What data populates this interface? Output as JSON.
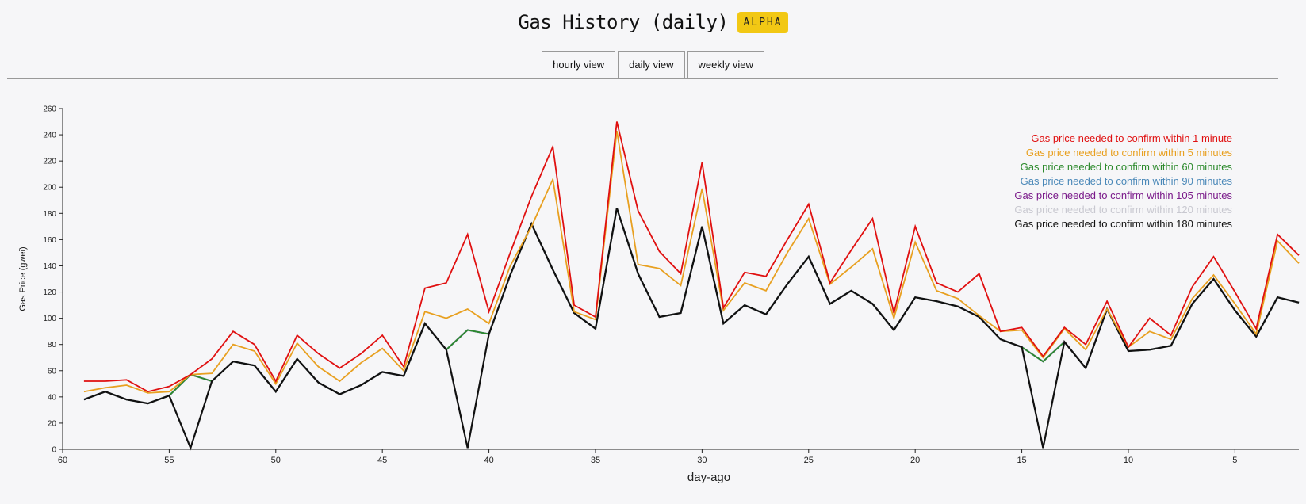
{
  "header": {
    "title": "Gas History (daily)",
    "badge": "ALPHA"
  },
  "tabs": [
    {
      "label": "hourly view"
    },
    {
      "label": "daily view"
    },
    {
      "label": "weekly view"
    }
  ],
  "chart_data": {
    "type": "line",
    "xlabel": "day-ago",
    "ylabel": "Gas Price (gwei)",
    "xlim": [
      60,
      2
    ],
    "ylim": [
      0,
      260
    ],
    "x_reversed": true,
    "xticks": [
      60,
      55,
      50,
      45,
      40,
      35,
      30,
      25,
      20,
      15,
      10,
      5
    ],
    "yticks": [
      0,
      20,
      40,
      60,
      80,
      100,
      120,
      140,
      160,
      180,
      200,
      220,
      240,
      260
    ],
    "legend_position": "top-right",
    "x": [
      59,
      58,
      57,
      56,
      55,
      54,
      53,
      52,
      51,
      50,
      49,
      48,
      47,
      46,
      45,
      44,
      43,
      42,
      41,
      40,
      39,
      38,
      37,
      36,
      35,
      34,
      33,
      32,
      31,
      30,
      29,
      28,
      27,
      26,
      25,
      24,
      23,
      22,
      21,
      20,
      19,
      18,
      17,
      16,
      15,
      14,
      13,
      12,
      11,
      10,
      9,
      8,
      7,
      6,
      5,
      4,
      3,
      2
    ],
    "series": [
      {
        "name": "Gas price needed to confirm within 1 minute",
        "color": "#e01010",
        "values": [
          52,
          52,
          53,
          44,
          48,
          57,
          69,
          90,
          80,
          52,
          87,
          73,
          62,
          73,
          87,
          63,
          123,
          127,
          164,
          105,
          150,
          193,
          231,
          110,
          101,
          250,
          182,
          151,
          134,
          219,
          108,
          135,
          132,
          160,
          187,
          127,
          152,
          176,
          104,
          170,
          127,
          120,
          134,
          90,
          93,
          71,
          93,
          80,
          113,
          78,
          100,
          87,
          124,
          147,
          120,
          92,
          164,
          148
        ]
      },
      {
        "name": "Gas price needed to confirm within 5 minutes",
        "color": "#e8a020",
        "values": [
          44,
          47,
          49,
          43,
          44,
          57,
          58,
          80,
          75,
          50,
          81,
          63,
          52,
          66,
          77,
          60,
          105,
          100,
          107,
          96,
          140,
          170,
          206,
          105,
          99,
          243,
          141,
          138,
          125,
          199,
          106,
          127,
          121,
          150,
          176,
          126,
          139,
          153,
          100,
          158,
          121,
          115,
          102,
          90,
          91,
          70,
          92,
          76,
          107,
          78,
          90,
          84,
          115,
          133,
          111,
          88,
          159,
          142
        ]
      },
      {
        "name": "Gas price needed to confirm within 60 minutes",
        "color": "#2c8a2c",
        "values": [
          38,
          44,
          38,
          35,
          41,
          57,
          52,
          67,
          64,
          44,
          69,
          51,
          42,
          49,
          59,
          56,
          96,
          76,
          91,
          88,
          133,
          172,
          137,
          104,
          92,
          184,
          134,
          101,
          104,
          170,
          96,
          110,
          103,
          126,
          147,
          111,
          121,
          111,
          91,
          116,
          113,
          109,
          101,
          84,
          78,
          67,
          82,
          62,
          107,
          75,
          76,
          79,
          111,
          130,
          106,
          86,
          116,
          112
        ]
      },
      {
        "name": "Gas price needed to confirm within 90 minutes",
        "color": "#4a88b8",
        "values": [
          38,
          44,
          38,
          35,
          41,
          57,
          52,
          67,
          64,
          44,
          69,
          51,
          42,
          49,
          59,
          56,
          96,
          76,
          91,
          88,
          133,
          172,
          137,
          104,
          92,
          184,
          134,
          101,
          104,
          170,
          96,
          110,
          103,
          126,
          147,
          111,
          121,
          111,
          91,
          116,
          113,
          109,
          101,
          84,
          78,
          67,
          82,
          62,
          107,
          75,
          76,
          79,
          111,
          130,
          106,
          86,
          116,
          112
        ]
      },
      {
        "name": "Gas price needed to confirm within 105 minutes",
        "color": "#7a1a8a",
        "values": [
          38,
          44,
          38,
          35,
          41,
          57,
          52,
          67,
          64,
          44,
          69,
          51,
          42,
          49,
          59,
          56,
          96,
          76,
          91,
          88,
          133,
          172,
          137,
          104,
          92,
          184,
          134,
          101,
          104,
          170,
          96,
          110,
          103,
          126,
          147,
          111,
          121,
          111,
          91,
          116,
          113,
          109,
          101,
          84,
          78,
          67,
          82,
          62,
          107,
          75,
          76,
          79,
          111,
          130,
          106,
          86,
          116,
          112
        ]
      },
      {
        "name": "Gas price needed to confirm within 120 minutes",
        "color": "#c8c8d0",
        "values": [
          38,
          44,
          38,
          35,
          41,
          57,
          52,
          67,
          64,
          44,
          69,
          51,
          42,
          49,
          59,
          56,
          96,
          76,
          91,
          88,
          133,
          172,
          137,
          104,
          92,
          184,
          134,
          101,
          104,
          170,
          96,
          110,
          103,
          126,
          147,
          111,
          121,
          111,
          91,
          116,
          113,
          109,
          101,
          84,
          78,
          67,
          82,
          62,
          107,
          75,
          76,
          79,
          111,
          130,
          106,
          86,
          116,
          112
        ]
      },
      {
        "name": "Gas price needed to confirm within 180 minutes",
        "color": "#111111",
        "values": [
          38,
          44,
          38,
          35,
          41,
          1,
          52,
          67,
          64,
          44,
          69,
          51,
          42,
          49,
          59,
          56,
          96,
          76,
          1,
          88,
          133,
          172,
          137,
          104,
          92,
          184,
          134,
          101,
          104,
          170,
          96,
          110,
          103,
          126,
          147,
          111,
          121,
          111,
          91,
          116,
          113,
          109,
          101,
          84,
          78,
          1,
          82,
          62,
          107,
          75,
          76,
          79,
          111,
          130,
          106,
          86,
          116,
          112
        ]
      }
    ]
  }
}
